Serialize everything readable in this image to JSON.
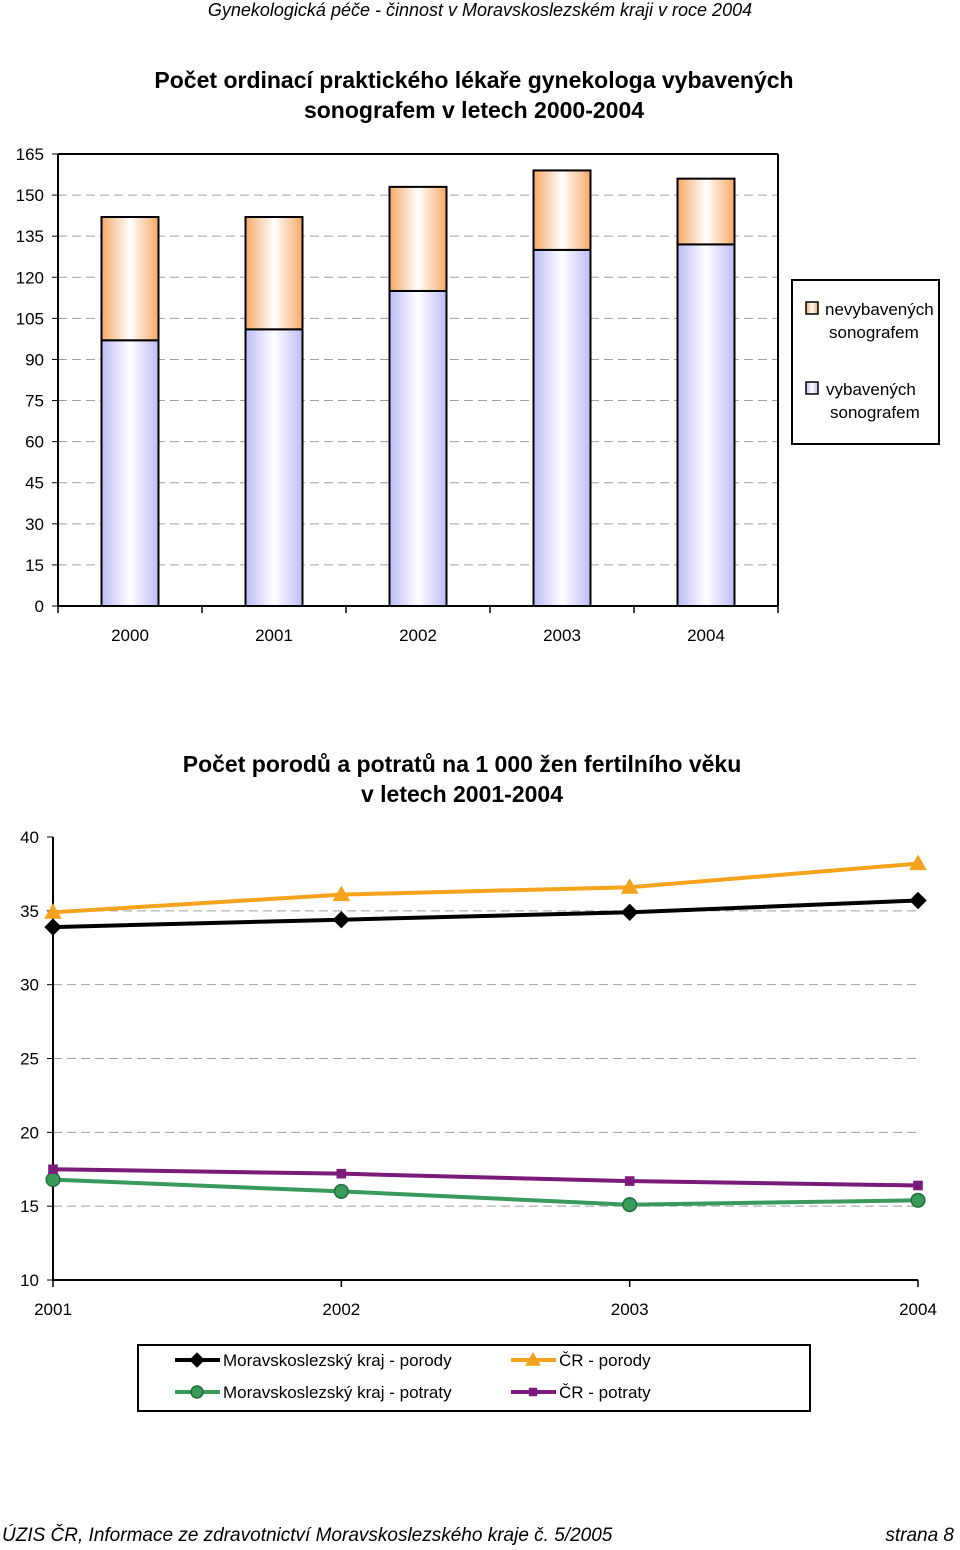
{
  "page": {
    "header": "Gynekologická péče - činnost v Moravskoslezském kraji v roce 2004",
    "footer_left": "ÚZIS ČR, Informace ze zdravotnictví Moravskoslezského kraje č. 5/2005",
    "footer_right": "strana 8"
  },
  "chart_data": [
    {
      "type": "bar",
      "stacked": true,
      "title": [
        "Počet ordinací praktického lékaře gynekologa vybavených",
        "sonografem v letech 2000-2004"
      ],
      "categories": [
        "2000",
        "2001",
        "2002",
        "2003",
        "2004"
      ],
      "series": [
        {
          "name": "vybavených sonografem",
          "legend_lines": [
            "vybavených",
            "sonografem"
          ],
          "values": [
            97,
            101,
            115,
            130,
            132
          ],
          "color": "#bcbcf8"
        },
        {
          "name": "nevybavených sonografem",
          "legend_lines": [
            "nevybavených",
            "sonografem"
          ],
          "values": [
            45,
            41,
            38,
            29,
            24
          ],
          "color": "#f7a865"
        }
      ],
      "ylim": [
        0,
        165
      ],
      "yticks": [
        "0",
        "15",
        "30",
        "45",
        "60",
        "75",
        "90",
        "105",
        "120",
        "135",
        "150",
        "165"
      ],
      "grid": true,
      "legend_position": "right"
    },
    {
      "type": "line",
      "title": [
        "Počet porodů a potratů na 1 000 žen fertilního věku",
        "v letech 2001-2004"
      ],
      "categories": [
        "2001",
        "2002",
        "2003",
        "2004"
      ],
      "series": [
        {
          "name": "Moravskoslezský kraj - porody",
          "values": [
            33.9,
            34.4,
            34.9,
            35.7
          ],
          "color": "#000000",
          "marker": "diamond"
        },
        {
          "name": "ČR - porody",
          "values": [
            34.9,
            36.1,
            36.6,
            38.2
          ],
          "color": "#f5a21c",
          "marker": "triangle"
        },
        {
          "name": "Moravskoslezský kraj - potraty",
          "values": [
            16.8,
            16.0,
            15.1,
            15.4
          ],
          "color": "#3a9a5c",
          "marker": "circle"
        },
        {
          "name": "ČR - potraty",
          "values": [
            17.5,
            17.2,
            16.7,
            16.4
          ],
          "color": "#7a1a7a",
          "marker": "square"
        }
      ],
      "ylim": [
        10,
        40
      ],
      "yticks": [
        "10",
        "15",
        "20",
        "25",
        "30",
        "35",
        "40"
      ],
      "grid": true,
      "legend_position": "bottom"
    }
  ]
}
